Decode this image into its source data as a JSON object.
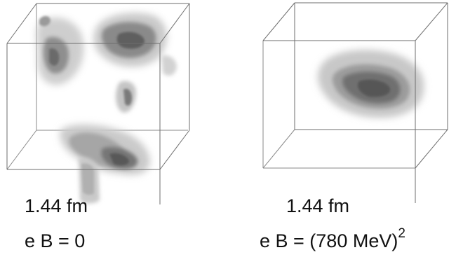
{
  "panels": [
    {
      "id": "left",
      "size_label": "1.44 fm",
      "field_label": "e B = 0",
      "field_exponent": ""
    },
    {
      "id": "right",
      "size_label": "1.44 fm",
      "field_label": "e B = (780 MeV)",
      "field_exponent": "2"
    }
  ],
  "colors": {
    "cube_edge": "#7a7a7a",
    "density_light": "#c8c8c8",
    "density_mid": "#9a9a9a",
    "density_dark": "#5e5e5e"
  }
}
